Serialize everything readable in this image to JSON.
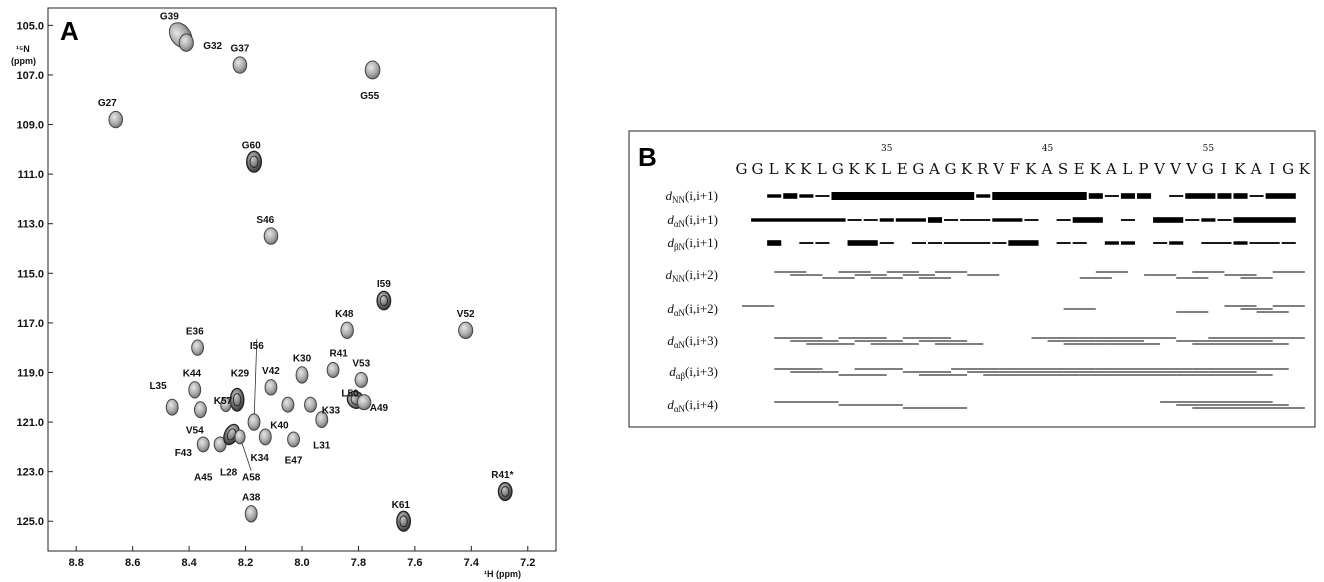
{
  "panel_a": {
    "label": "A",
    "chart_data": {
      "type": "scatter",
      "xlabel": "¹H (ppm)",
      "ylabel_line1": "¹⁵N",
      "ylabel_line2": "(ppm)",
      "xlim": [
        8.9,
        7.1
      ],
      "ylim": [
        104.3,
        126.2
      ],
      "x_ticks": [
        8.8,
        8.6,
        8.4,
        8.2,
        8.0,
        7.8,
        7.6,
        7.4,
        7.2
      ],
      "x_tick_labels": [
        "8.8",
        "8.6",
        "8.4",
        "8.2",
        "8.0",
        "7.8",
        "7.6",
        "7.4",
        "7.2"
      ],
      "y_ticks": [
        105.0,
        107.0,
        109.0,
        111.0,
        113.0,
        115.0,
        117.0,
        119.0,
        121.0,
        123.0,
        125.0
      ],
      "y_tick_labels": [
        "105.0",
        "107.0",
        "109.0",
        "111.0",
        "113.0",
        "115.0",
        "117.0",
        "119.0",
        "121.0",
        "123.0",
        "125.0"
      ],
      "peaks": [
        {
          "label": "G39",
          "x": 8.43,
          "y": 105.4,
          "rx": 0.035,
          "ry": 0.55,
          "rot": -35,
          "strong": false,
          "lx": 8.47,
          "ly": 104.6,
          "anchor": "middle"
        },
        {
          "label": "G32",
          "x": 8.41,
          "y": 105.7,
          "rx": 0.025,
          "ry": 0.35,
          "rot": 0,
          "strong": false,
          "lx": 8.35,
          "ly": 105.8,
          "anchor": "start"
        },
        {
          "label": "G37",
          "x": 8.22,
          "y": 106.6,
          "rx": 0.024,
          "ry": 0.33,
          "rot": 0,
          "strong": false,
          "lx": 8.22,
          "ly": 105.9,
          "anchor": "middle"
        },
        {
          "label": "G55",
          "x": 7.75,
          "y": 106.8,
          "rx": 0.026,
          "ry": 0.36,
          "rot": 0,
          "strong": false,
          "lx": 7.76,
          "ly": 107.8,
          "anchor": "middle"
        },
        {
          "label": "G27",
          "x": 8.66,
          "y": 108.8,
          "rx": 0.024,
          "ry": 0.33,
          "rot": 0,
          "strong": false,
          "lx": 8.69,
          "ly": 108.1,
          "anchor": "middle"
        },
        {
          "label": "G60",
          "x": 8.17,
          "y": 110.5,
          "rx": 0.026,
          "ry": 0.42,
          "rot": 0,
          "strong": true,
          "lx": 8.18,
          "ly": 109.8,
          "anchor": "middle"
        },
        {
          "label": "S46",
          "x": 8.11,
          "y": 113.5,
          "rx": 0.024,
          "ry": 0.33,
          "rot": 0,
          "strong": false,
          "lx": 8.13,
          "ly": 112.8,
          "anchor": "middle"
        },
        {
          "label": "I59",
          "x": 7.71,
          "y": 116.1,
          "rx": 0.024,
          "ry": 0.37,
          "rot": 0,
          "strong": true,
          "lx": 7.71,
          "ly": 115.4,
          "anchor": "middle"
        },
        {
          "label": "V52",
          "x": 7.42,
          "y": 117.3,
          "rx": 0.025,
          "ry": 0.33,
          "rot": 0,
          "strong": false,
          "lx": 7.42,
          "ly": 116.6,
          "anchor": "middle"
        },
        {
          "label": "K48",
          "x": 7.84,
          "y": 117.3,
          "rx": 0.022,
          "ry": 0.33,
          "rot": 0,
          "strong": false,
          "lx": 7.85,
          "ly": 116.6,
          "anchor": "middle"
        },
        {
          "label": "E36",
          "x": 8.37,
          "y": 118.0,
          "rx": 0.021,
          "ry": 0.31,
          "rot": 0,
          "strong": false,
          "lx": 8.38,
          "ly": 117.3,
          "anchor": "middle"
        },
        {
          "label": "K30",
          "x": 8.0,
          "y": 119.1,
          "rx": 0.021,
          "ry": 0.33,
          "rot": 0,
          "strong": false,
          "lx": 8.0,
          "ly": 118.4,
          "anchor": "middle"
        },
        {
          "label": "R41",
          "x": 7.89,
          "y": 118.9,
          "rx": 0.021,
          "ry": 0.3,
          "rot": 0,
          "strong": false,
          "lx": 7.87,
          "ly": 118.2,
          "anchor": "middle"
        },
        {
          "label": "V53",
          "x": 7.79,
          "y": 119.3,
          "rx": 0.022,
          "ry": 0.3,
          "rot": 0,
          "strong": false,
          "lx": 7.79,
          "ly": 118.6,
          "anchor": "middle"
        },
        {
          "label": "K44",
          "x": 8.38,
          "y": 119.7,
          "rx": 0.021,
          "ry": 0.33,
          "rot": 0,
          "strong": false,
          "lx": 8.39,
          "ly": 119.0,
          "anchor": "middle"
        },
        {
          "label": "K29",
          "x": 8.23,
          "y": 120.1,
          "rx": 0.024,
          "ry": 0.46,
          "rot": 0,
          "strong": true,
          "lx": 8.22,
          "ly": 119.0,
          "anchor": "middle"
        },
        {
          "label": "V42",
          "x": 8.11,
          "y": 119.6,
          "rx": 0.021,
          "ry": 0.31,
          "rot": 0,
          "strong": false,
          "lx": 8.11,
          "ly": 118.9,
          "anchor": "middle"
        },
        {
          "label": "L50",
          "x": 7.81,
          "y": 120.1,
          "rx": 0.028,
          "ry": 0.36,
          "rot": -35,
          "strong": true,
          "lx": 7.83,
          "ly": 119.8,
          "anchor": "middle"
        },
        {
          "label": "A49",
          "x": 7.78,
          "y": 120.2,
          "rx": 0.024,
          "ry": 0.3,
          "rot": 0,
          "strong": false,
          "lx": 7.76,
          "ly": 120.4,
          "anchor": "start"
        },
        {
          "label": "L35",
          "x": 8.46,
          "y": 120.4,
          "rx": 0.021,
          "ry": 0.32,
          "rot": 0,
          "strong": false,
          "lx": 8.51,
          "ly": 119.5,
          "anchor": "middle"
        },
        {
          "label": "V54",
          "x": 8.36,
          "y": 120.5,
          "rx": 0.021,
          "ry": 0.32,
          "rot": 0,
          "strong": false,
          "lx": 8.38,
          "ly": 121.3,
          "anchor": "middle"
        },
        {
          "label": "K57",
          "x": 8.27,
          "y": 120.3,
          "rx": 0.018,
          "ry": 0.28,
          "rot": 0,
          "strong": false,
          "lx": 8.28,
          "ly": 120.1,
          "anchor": "middle"
        },
        {
          "label": "I56",
          "x": 8.17,
          "y": 121.0,
          "rx": 0.021,
          "ry": 0.33,
          "rot": 0,
          "strong": false,
          "lx": 8.16,
          "ly": 117.9,
          "anchor": "middle"
        },
        {
          "label": "K40",
          "x": 8.05,
          "y": 120.3,
          "rx": 0.021,
          "ry": 0.3,
          "rot": 0,
          "strong": false,
          "lx": 8.08,
          "ly": 121.1,
          "anchor": "middle"
        },
        {
          "label": "K33",
          "x": 7.97,
          "y": 120.3,
          "rx": 0.021,
          "ry": 0.3,
          "rot": 0,
          "strong": false,
          "lx": 7.93,
          "ly": 120.5,
          "anchor": "start"
        },
        {
          "label": "L31",
          "x": 7.93,
          "y": 120.9,
          "rx": 0.021,
          "ry": 0.32,
          "rot": 0,
          "strong": false,
          "lx": 7.93,
          "ly": 121.9,
          "anchor": "middle"
        },
        {
          "label": "F43",
          "x": 8.35,
          "y": 121.9,
          "rx": 0.021,
          "ry": 0.3,
          "rot": 0,
          "strong": false,
          "lx": 8.39,
          "ly": 122.2,
          "anchor": "end"
        },
        {
          "label": "A45",
          "x": 8.29,
          "y": 121.9,
          "rx": 0.021,
          "ry": 0.3,
          "rot": 0,
          "strong": false,
          "lx": 8.35,
          "ly": 123.2,
          "anchor": "middle"
        },
        {
          "label": "L28",
          "x": 8.25,
          "y": 121.5,
          "rx": 0.024,
          "ry": 0.43,
          "rot": 25,
          "strong": true,
          "lx": 8.26,
          "ly": 123.0,
          "anchor": "middle"
        },
        {
          "label": "A58",
          "x": 8.22,
          "y": 121.6,
          "rx": 0.018,
          "ry": 0.28,
          "rot": 0,
          "strong": false,
          "lx": 8.18,
          "ly": 123.2,
          "anchor": "middle"
        },
        {
          "label": "K34",
          "x": 8.13,
          "y": 121.6,
          "rx": 0.021,
          "ry": 0.32,
          "rot": 0,
          "strong": false,
          "lx": 8.15,
          "ly": 122.4,
          "anchor": "middle"
        },
        {
          "label": "E47",
          "x": 8.03,
          "y": 121.7,
          "rx": 0.021,
          "ry": 0.3,
          "rot": 0,
          "strong": false,
          "lx": 8.03,
          "ly": 122.5,
          "anchor": "middle"
        },
        {
          "label": "R41*",
          "x": 7.28,
          "y": 123.8,
          "rx": 0.024,
          "ry": 0.36,
          "rot": 0,
          "strong": true,
          "lx": 7.29,
          "ly": 123.1,
          "anchor": "middle"
        },
        {
          "label": "A38",
          "x": 8.18,
          "y": 124.7,
          "rx": 0.021,
          "ry": 0.33,
          "rot": 0,
          "strong": false,
          "lx": 8.18,
          "ly": 124.0,
          "anchor": "middle"
        },
        {
          "label": "K61",
          "x": 7.64,
          "y": 125.0,
          "rx": 0.024,
          "ry": 0.4,
          "rot": 0,
          "strong": true,
          "lx": 7.65,
          "ly": 124.3,
          "anchor": "middle"
        }
      ]
    }
  },
  "panel_b": {
    "label": "B",
    "sequence": "GGLKKLGKKLEGAGKRVFKASEKALPVVVGIKAIGK",
    "first_residue_number": 26,
    "position_labels": [
      {
        "residue": 35,
        "text": "35"
      },
      {
        "residue": 45,
        "text": "45"
      },
      {
        "residue": 55,
        "text": "55"
      }
    ],
    "rows": [
      {
        "name": "NN",
        "arg": "(i,i+1)",
        "bars": [
          [
            28,
            29,
            2
          ],
          [
            29,
            30,
            3
          ],
          [
            30,
            31,
            2
          ],
          [
            31,
            32,
            1
          ],
          [
            32,
            41,
            4
          ],
          [
            41,
            42,
            2
          ],
          [
            42,
            48,
            4
          ],
          [
            48,
            49,
            3
          ],
          [
            49,
            50,
            1
          ],
          [
            50,
            51,
            3
          ],
          [
            51,
            52,
            3
          ],
          [
            53,
            54,
            1
          ],
          [
            54,
            56,
            3
          ],
          [
            56,
            57,
            3
          ],
          [
            57,
            58,
            3
          ],
          [
            58,
            59,
            1
          ],
          [
            59,
            61,
            3
          ]
        ],
        "staggered": false
      },
      {
        "name": "αN",
        "arg": "(i,i+1)",
        "bars": [
          [
            27,
            33,
            2
          ],
          [
            33,
            34,
            1
          ],
          [
            34,
            35,
            1
          ],
          [
            35,
            36,
            2
          ],
          [
            36,
            38,
            2
          ],
          [
            38,
            39,
            3
          ],
          [
            39,
            40,
            1
          ],
          [
            40,
            42,
            1
          ],
          [
            42,
            44,
            2
          ],
          [
            44,
            45,
            1
          ],
          [
            46,
            47,
            1
          ],
          [
            47,
            49,
            3
          ],
          [
            50,
            51,
            1
          ],
          [
            52,
            54,
            3
          ],
          [
            54,
            55,
            1
          ],
          [
            55,
            56,
            2
          ],
          [
            56,
            57,
            1
          ],
          [
            57,
            61,
            3
          ]
        ],
        "staggered": false
      },
      {
        "name": "βN",
        "arg": "(i,i+1)",
        "bars": [
          [
            28,
            29,
            3
          ],
          [
            30,
            31,
            1
          ],
          [
            31,
            32,
            1
          ],
          [
            33,
            35,
            3
          ],
          [
            35,
            36,
            1
          ],
          [
            37,
            38,
            1
          ],
          [
            38,
            39,
            1
          ],
          [
            39,
            42,
            1
          ],
          [
            42,
            43,
            1
          ],
          [
            43,
            45,
            3
          ],
          [
            46,
            47,
            1
          ],
          [
            47,
            48,
            1
          ],
          [
            49,
            50,
            2
          ],
          [
            50,
            51,
            2
          ],
          [
            52,
            53,
            1
          ],
          [
            53,
            54,
            2
          ],
          [
            55,
            57,
            1
          ],
          [
            57,
            58,
            2
          ],
          [
            58,
            60,
            1
          ],
          [
            60,
            61,
            1
          ]
        ],
        "staggered": false
      },
      {
        "name": "NN",
        "arg": "(i,i+2)",
        "bars": [
          [
            28,
            30
          ],
          [
            29,
            31
          ],
          [
            31,
            33
          ],
          [
            32,
            34
          ],
          [
            33,
            35
          ],
          [
            34,
            36
          ],
          [
            35,
            37
          ],
          [
            36,
            38
          ],
          [
            37,
            39
          ],
          [
            38,
            40
          ],
          [
            40,
            42
          ],
          [
            47,
            49
          ],
          [
            48,
            50
          ],
          [
            51,
            53
          ],
          [
            53,
            55
          ],
          [
            54,
            56
          ],
          [
            56,
            58
          ],
          [
            57,
            59
          ],
          [
            59,
            61
          ]
        ],
        "staggered": true
      },
      {
        "name": "αN",
        "arg": "(i,i+2)",
        "bars": [
          [
            26,
            28
          ],
          [
            46,
            48
          ],
          [
            53,
            55
          ],
          [
            56,
            58
          ],
          [
            57,
            59
          ],
          [
            58,
            60
          ],
          [
            59,
            61
          ]
        ],
        "staggered": true
      },
      {
        "name": "αN",
        "arg": "(i,i+3)",
        "bars": [
          [
            28,
            31
          ],
          [
            29,
            32
          ],
          [
            30,
            33
          ],
          [
            32,
            35
          ],
          [
            33,
            36
          ],
          [
            34,
            37
          ],
          [
            36,
            39
          ],
          [
            37,
            40
          ],
          [
            38,
            41
          ],
          [
            44,
            47
          ],
          [
            45,
            48
          ],
          [
            46,
            49
          ],
          [
            47,
            50
          ],
          [
            48,
            51
          ],
          [
            49,
            52
          ],
          [
            50,
            53
          ],
          [
            53,
            56
          ],
          [
            54,
            57
          ],
          [
            55,
            58
          ],
          [
            56,
            59
          ],
          [
            57,
            60
          ],
          [
            58,
            61
          ]
        ],
        "staggered": true
      },
      {
        "name": "αβ",
        "arg": "(i,i+3)",
        "bars": [
          [
            28,
            31
          ],
          [
            29,
            32
          ],
          [
            32,
            35
          ],
          [
            33,
            36
          ],
          [
            36,
            39
          ],
          [
            37,
            40
          ],
          [
            39,
            42
          ],
          [
            40,
            43
          ],
          [
            41,
            44
          ],
          [
            42,
            45
          ],
          [
            43,
            46
          ],
          [
            44,
            47
          ],
          [
            45,
            48
          ],
          [
            46,
            49
          ],
          [
            47,
            50
          ],
          [
            48,
            51
          ],
          [
            49,
            52
          ],
          [
            50,
            53
          ],
          [
            51,
            54
          ],
          [
            52,
            55
          ],
          [
            53,
            56
          ],
          [
            54,
            57
          ],
          [
            55,
            58
          ],
          [
            56,
            59
          ],
          [
            57,
            60
          ]
        ],
        "staggered": true
      },
      {
        "name": "αN",
        "arg": "(i,i+4)",
        "bars": [
          [
            28,
            32
          ],
          [
            32,
            36
          ],
          [
            36,
            40
          ],
          [
            52,
            56
          ],
          [
            53,
            57
          ],
          [
            54,
            58
          ],
          [
            55,
            59
          ],
          [
            56,
            60
          ],
          [
            57,
            61
          ]
        ],
        "staggered": true
      }
    ]
  }
}
